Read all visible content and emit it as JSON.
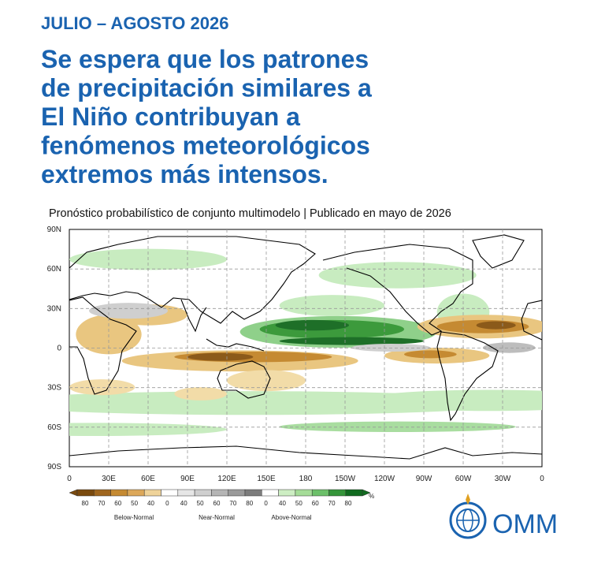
{
  "header": {
    "period": "JULIO – AGOSTO 2026",
    "title_lines": [
      "Se espera que los patrones",
      "de precipitación similares a",
      "El Niño contribuyan a",
      "fenómenos meteorológicos",
      "extremos más intensos."
    ],
    "subtitle": "Pronóstico probabilístico de conjunto multimodelo | Publicado en mayo de 2026"
  },
  "map": {
    "lat_labels": [
      "90N",
      "60N",
      "30N",
      "0",
      "30S",
      "60S",
      "90S"
    ],
    "lon_labels": [
      "0",
      "30E",
      "60E",
      "90E",
      "120E",
      "150E",
      "180",
      "150W",
      "120W",
      "90W",
      "60W",
      "30W",
      "0"
    ]
  },
  "legend": {
    "labels": [
      "80",
      "70",
      "60",
      "50",
      "40",
      "0",
      "40",
      "50",
      "60",
      "70",
      "80",
      "0",
      "40",
      "50",
      "60",
      "70",
      "80"
    ],
    "unit": "%",
    "groups": [
      "Below-Normal",
      "Near-Normal",
      "Above-Normal"
    ]
  },
  "logo": "OMM"
}
